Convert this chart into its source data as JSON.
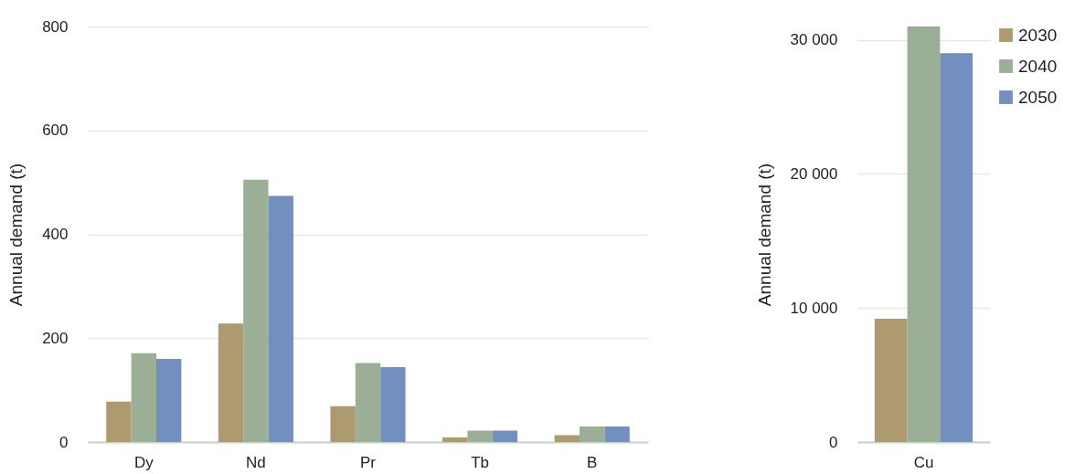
{
  "chart_data": [
    {
      "type": "bar",
      "ylabel": "Annual demand (t)",
      "categories": [
        "Dy",
        "Nd",
        "Pr",
        "Tb",
        "B"
      ],
      "series": [
        {
          "name": "2030",
          "color": "#ad9a6e",
          "values": [
            78,
            228,
            69,
            9,
            13
          ]
        },
        {
          "name": "2040",
          "color": "#9aaf95",
          "values": [
            171,
            505,
            152,
            22,
            30
          ]
        },
        {
          "name": "2050",
          "color": "#7290bf",
          "values": [
            160,
            474,
            144,
            22,
            30
          ]
        }
      ],
      "ylim": [
        0,
        800
      ],
      "yticks": [
        0,
        200,
        400,
        600,
        800
      ],
      "grid": "y",
      "legend": "right"
    },
    {
      "type": "bar",
      "ylabel": "Annual demand (t)",
      "categories": [
        "Cu"
      ],
      "series": [
        {
          "name": "2030",
          "color": "#ad9a6e",
          "values": [
            9200
          ]
        },
        {
          "name": "2040",
          "color": "#9aaf95",
          "values": [
            31000
          ]
        },
        {
          "name": "2050",
          "color": "#7290bf",
          "values": [
            29000
          ]
        }
      ],
      "ylim": [
        0,
        31000
      ],
      "yticks": [
        {
          "value": 0,
          "label": "0"
        },
        {
          "value": 10000,
          "label": "10 000"
        },
        {
          "value": 20000,
          "label": "20 000"
        },
        {
          "value": 30000,
          "label": "30 000"
        }
      ],
      "grid": "y",
      "legend": "right"
    }
  ]
}
